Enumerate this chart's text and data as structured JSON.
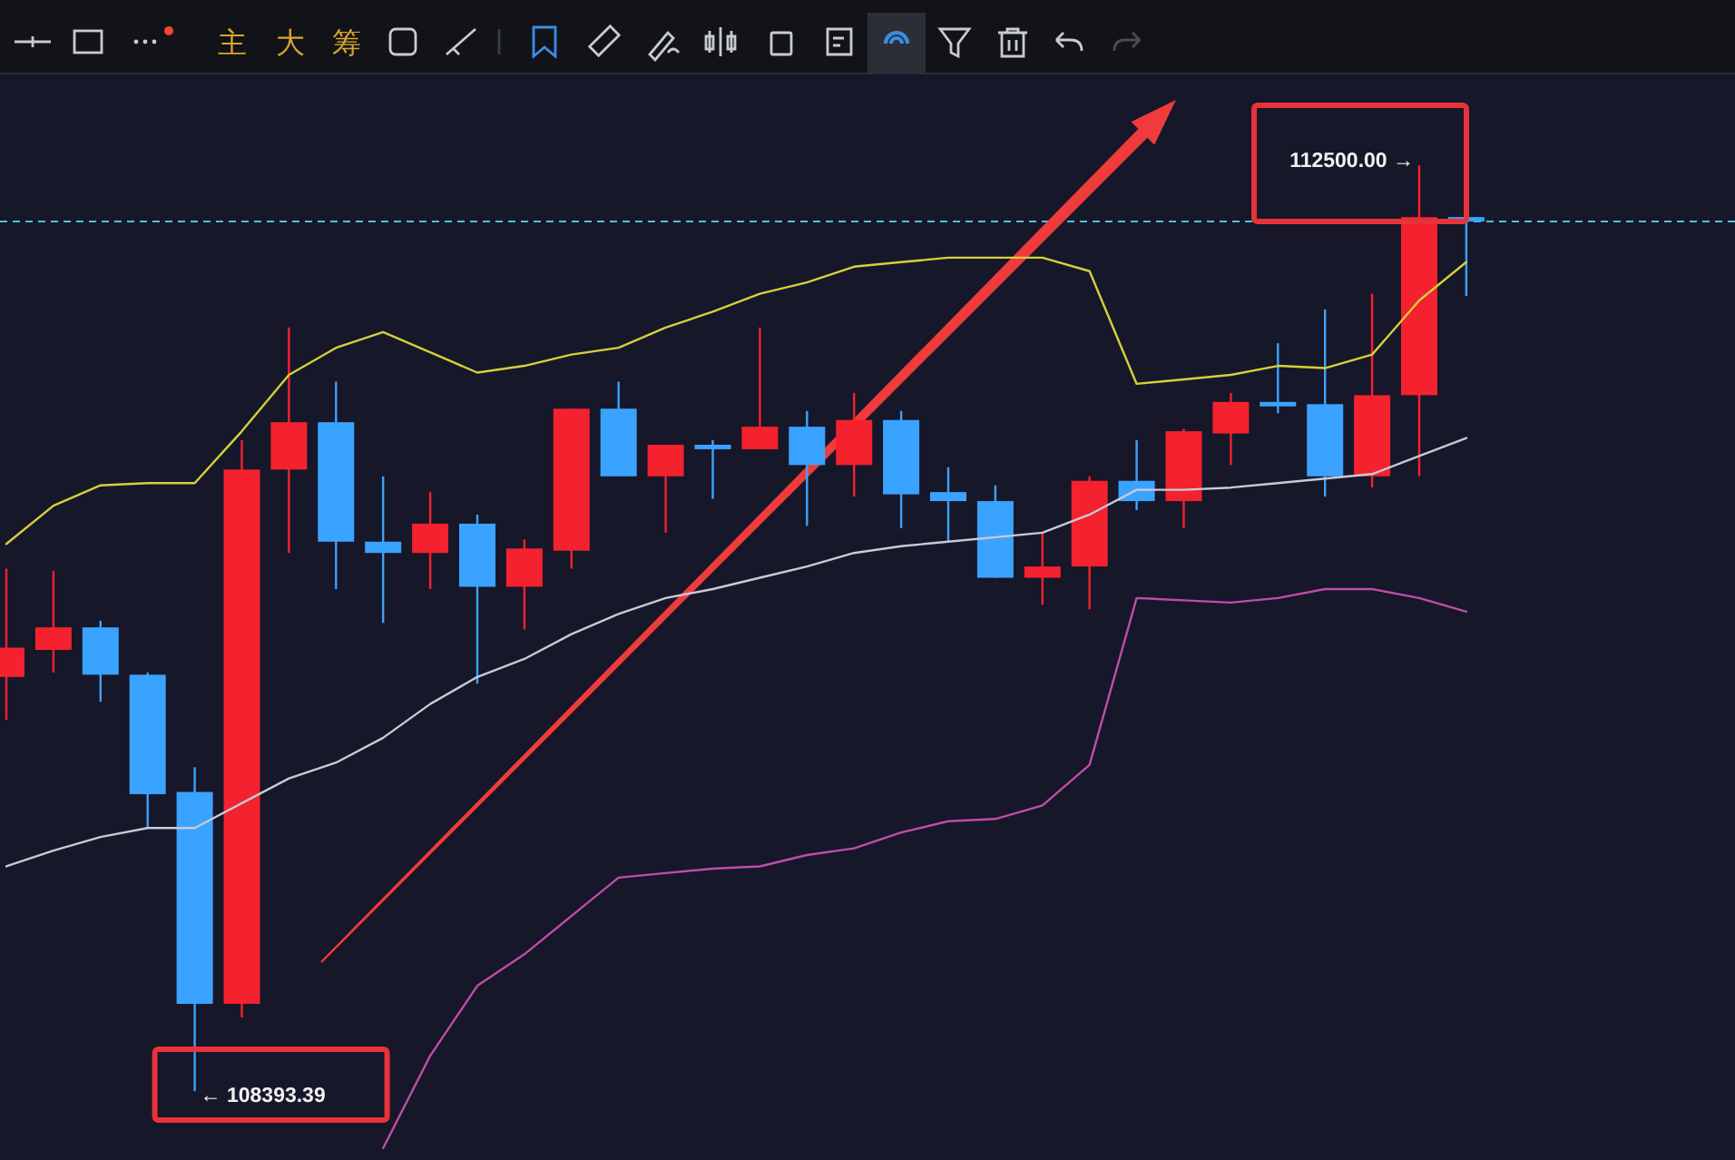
{
  "chart_data": {
    "type": "candlestick",
    "categories": [
      null,
      null,
      null,
      null,
      null,
      null,
      null,
      null,
      null,
      null,
      null,
      null,
      null,
      null,
      null,
      null,
      null,
      null,
      null,
      null,
      null,
      null,
      null,
      null,
      null,
      null,
      null,
      null,
      null,
      null,
      null,
      null
    ],
    "ohlc": [
      [
        110230,
        110710,
        110040,
        110360
      ],
      [
        110350,
        110700,
        110250,
        110450
      ],
      [
        110450,
        110480,
        110120,
        110240
      ],
      [
        110240,
        110250,
        109560,
        109710
      ],
      [
        109720,
        109830,
        108393.39,
        108780
      ],
      [
        108780,
        111280,
        108720,
        111150
      ],
      [
        111150,
        111780,
        110780,
        111360
      ],
      [
        111360,
        111540,
        110620,
        110830
      ],
      [
        110830,
        111120,
        110470,
        110780
      ],
      [
        110780,
        111050,
        110620,
        110910
      ],
      [
        110910,
        110950,
        110200,
        110630
      ],
      [
        110630,
        110840,
        110440,
        110800
      ],
      [
        110790,
        111420,
        110710,
        111420
      ],
      [
        111420,
        111540,
        111120,
        111120
      ],
      [
        111120,
        111260,
        110870,
        111260
      ],
      [
        111260,
        111280,
        111020,
        111240
      ],
      [
        111240,
        111780,
        111240,
        111340
      ],
      [
        111340,
        111410,
        110900,
        111170
      ],
      [
        111170,
        111490,
        111030,
        111370
      ],
      [
        111370,
        111410,
        110890,
        111040
      ],
      [
        111050,
        111160,
        110830,
        111010
      ],
      [
        111010,
        111080,
        110670,
        110670
      ],
      [
        110670,
        110870,
        110550,
        110720
      ],
      [
        110720,
        111120,
        110530,
        111100
      ],
      [
        111100,
        111280,
        110970,
        111010
      ],
      [
        111010,
        111330,
        110890,
        111320
      ],
      [
        111310,
        111490,
        111170,
        111450
      ],
      [
        111450,
        111710,
        111400,
        111430
      ],
      [
        111440,
        111860,
        111030,
        111120
      ],
      [
        111120,
        111930,
        111070,
        111480
      ],
      [
        111480,
        112500,
        111120,
        112270
      ],
      [
        112270,
        112270,
        111920,
        112250
      ]
    ],
    "colors": [
      "#f4212e",
      "#f4212e",
      "#3aa3ff",
      "#3aa3ff",
      "#3aa3ff",
      "#f4212e",
      "#f4212e",
      "#3aa3ff",
      "#3aa3ff",
      "#f4212e",
      "#3aa3ff",
      "#f4212e",
      "#f4212e",
      "#3aa3ff",
      "#f4212e",
      "#3aa3ff",
      "#f4212e",
      "#3aa3ff",
      "#f4212e",
      "#3aa3ff",
      "#3aa3ff",
      "#3aa3ff",
      "#f4212e",
      "#f4212e",
      "#3aa3ff",
      "#f4212e",
      "#f4212e",
      "#3aa3ff",
      "#3aa3ff",
      "#f4212e",
      "#f4212e",
      "#3aa3ff"
    ],
    "series": [
      {
        "type": "line",
        "color": "#d8cf3a",
        "values": [
          110820,
          110990,
          111080,
          111090,
          111090,
          111320,
          111570,
          111690,
          111760,
          111670,
          111580,
          111610,
          111660,
          111690,
          111780,
          111850,
          111930,
          111980,
          112050,
          112070,
          112090,
          112090,
          112090,
          112030,
          111530,
          111550,
          111570,
          111610,
          111600,
          111660,
          111900,
          112070
        ]
      },
      {
        "type": "line",
        "color": "#c9cad6",
        "values": [
          109390,
          109460,
          109520,
          109560,
          109560,
          109670,
          109780,
          109850,
          109960,
          110110,
          110230,
          110310,
          110420,
          110510,
          110580,
          110620,
          110670,
          110720,
          110780,
          110810,
          110830,
          110850,
          110870,
          110950,
          111060,
          111060,
          111070,
          111090,
          111110,
          111130,
          111210,
          111290
        ]
      },
      {
        "type": "line",
        "color": "#c04ca8",
        "values": [
          null,
          null,
          null,
          null,
          null,
          null,
          null,
          null,
          108140,
          108550,
          108860,
          109000,
          109170,
          109340,
          109360,
          109380,
          109390,
          109440,
          109470,
          109540,
          109590,
          109600,
          109660,
          109840,
          110580,
          110570,
          110560,
          110580,
          110620,
          110620,
          110580,
          110520
        ]
      }
    ],
    "ref_lines": [
      {
        "axis": "y",
        "value": 112250,
        "color": "#4fc3d9",
        "line_style": "dashed"
      }
    ],
    "annotations": [
      "主",
      "大",
      "筹",
      "112500.00 →",
      "← 108393.39"
    ],
    "tick_labels": false
  }
}
